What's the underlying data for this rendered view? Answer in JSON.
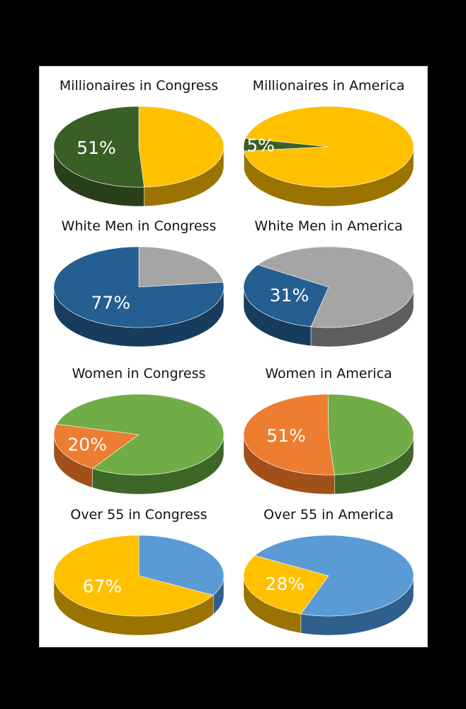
{
  "chart_data": [
    {
      "type": "pie",
      "title": "Millionaires in Congress",
      "first_slice_angle": 0,
      "slices": [
        {
          "value": 49,
          "color": "#FFC000",
          "side": "#9A7300",
          "label": ""
        },
        {
          "value": 51,
          "color": "#3A5F26",
          "side": "#27401A",
          "label": "51%"
        }
      ]
    },
    {
      "type": "pie",
      "title": "Millionaires in America",
      "first_slice_angle": 264,
      "slices": [
        {
          "value": 5,
          "color": "#3A5F26",
          "side": "#27401A",
          "label": "5%"
        },
        {
          "value": 95,
          "color": "#FFC000",
          "side": "#9A7300",
          "label": ""
        }
      ]
    },
    {
      "type": "pie",
      "title": "White Men in Congress",
      "first_slice_angle": 0,
      "slices": [
        {
          "value": 23,
          "color": "#A5A5A5",
          "side": "#6E6E6E",
          "label": ""
        },
        {
          "value": 77,
          "color": "#255E91",
          "side": "#173C5E",
          "label": "77%"
        }
      ]
    },
    {
      "type": "pie",
      "title": "White Men in America",
      "first_slice_angle": 192,
      "slices": [
        {
          "value": 31,
          "color": "#255E91",
          "side": "#173C5E",
          "label": "31%"
        },
        {
          "value": 69,
          "color": "#A5A5A5",
          "side": "#5E5E5E",
          "label": ""
        }
      ]
    },
    {
      "type": "pie",
      "title": "Women in Congress",
      "first_slice_angle": 213,
      "slices": [
        {
          "value": 20,
          "color": "#ED7D31",
          "side": "#A2501A",
          "label": "20%"
        },
        {
          "value": 80,
          "color": "#70AD47",
          "side": "#3E6626",
          "label": ""
        }
      ]
    },
    {
      "type": "pie",
      "title": "Women in America",
      "first_slice_angle": 176,
      "slices": [
        {
          "value": 51,
          "color": "#ED7D31",
          "side": "#A2501A",
          "label": "51%"
        },
        {
          "value": 49,
          "color": "#70AD47",
          "side": "#3E6626",
          "label": ""
        }
      ]
    },
    {
      "type": "pie",
      "title": "Over 55 in Congress",
      "first_slice_angle": 0,
      "slices": [
        {
          "value": 33,
          "color": "#5B9BD5",
          "side": "#2F5F8C",
          "label": ""
        },
        {
          "value": 67,
          "color": "#FFC000",
          "side": "#9A7300",
          "label": "67%"
        }
      ]
    },
    {
      "type": "pie",
      "title": "Over 55 in America",
      "first_slice_angle": 199,
      "slices": [
        {
          "value": 28,
          "color": "#FFC000",
          "side": "#9A7300",
          "label": "28%"
        },
        {
          "value": 72,
          "color": "#5B9BD5",
          "side": "#2F5F8C",
          "label": ""
        }
      ]
    }
  ]
}
